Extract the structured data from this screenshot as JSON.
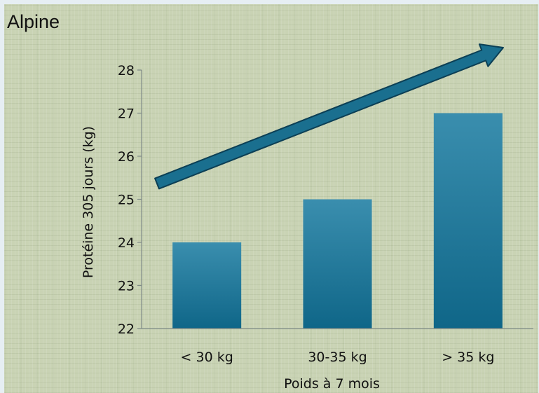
{
  "title": "Alpine",
  "colors": {
    "bar_top": "#3a8eae",
    "bar_bottom": "#0f6688",
    "arrow_fill": "#1a6f8f",
    "arrow_stroke": "#0c3f55",
    "axis": "#7f8a86"
  },
  "chart_data": {
    "type": "bar",
    "title": "Alpine",
    "categories": [
      "< 30 kg",
      "30-35 kg",
      "> 35 kg"
    ],
    "values": [
      24,
      25,
      27
    ],
    "xlabel": "Poids à 7 mois",
    "ylabel": "Protéine 305 jours (kg)",
    "ylim": [
      22,
      28
    ],
    "yticks": [
      22,
      23,
      24,
      25,
      26,
      27,
      28
    ],
    "grid": false,
    "legend": "none",
    "annotations": [
      {
        "type": "arrow",
        "shape": "trend-up",
        "from": "left",
        "to": "upper-right"
      }
    ]
  }
}
